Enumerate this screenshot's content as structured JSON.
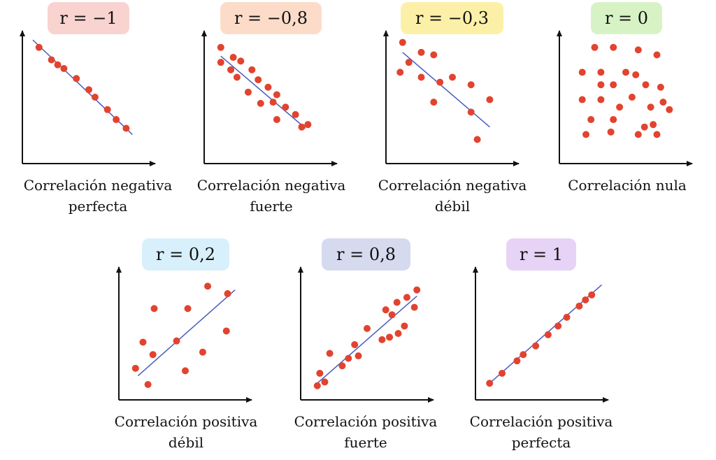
{
  "colors": {
    "point": "#e2432f",
    "trend": "#4a5bbf",
    "axis": "#111111"
  },
  "chart_data": [
    {
      "type": "scatter",
      "label_r": "r = −1",
      "caption_line1": "Correlación negativa",
      "caption_line2": "perfecta",
      "badge_color": "#f8d3d0",
      "x": [
        1.0,
        2.0,
        2.5,
        3.0,
        4.0,
        5.0,
        5.5,
        6.5,
        7.2,
        8.0
      ],
      "y": [
        9.0,
        8.0,
        7.6,
        7.3,
        6.5,
        5.6,
        5.0,
        4.0,
        3.2,
        2.5
      ],
      "trend": [
        [
          0.5,
          9.6
        ],
        [
          8.5,
          2.0
        ]
      ]
    },
    {
      "type": "scatter",
      "label_r": "r = −0,8",
      "caption_line1": "Correlación negativa",
      "caption_line2": "fuerte",
      "badge_color": "#fcdcc9",
      "x": [
        1.0,
        2.0,
        2.6,
        3.5,
        1.0,
        1.8,
        2.3,
        4.0,
        4.8,
        3.2,
        5.5,
        4.2,
        5.2,
        6.2,
        7.0,
        5.5,
        7.5,
        8.0
      ],
      "y": [
        9.0,
        8.2,
        7.9,
        7.2,
        7.8,
        7.2,
        6.6,
        6.4,
        5.8,
        5.4,
        5.2,
        4.5,
        4.6,
        4.2,
        3.6,
        3.2,
        2.6,
        2.8
      ],
      "trend": [
        [
          1.0,
          8.3
        ],
        [
          7.8,
          2.5
        ]
      ]
    },
    {
      "type": "scatter",
      "label_r": "r = −0,3",
      "caption_line1": "Correlación negativa",
      "caption_line2": "débil",
      "badge_color": "#fcf0a8",
      "x": [
        1.0,
        2.5,
        3.5,
        1.5,
        2.5,
        0.8,
        4.0,
        5.0,
        6.5,
        3.5,
        8.0,
        6.5,
        7.0
      ],
      "y": [
        9.4,
        8.6,
        8.4,
        7.8,
        6.6,
        7.0,
        6.2,
        6.6,
        6.0,
        4.6,
        4.8,
        3.8,
        1.6
      ],
      "trend": [
        [
          1.0,
          8.6
        ],
        [
          8.0,
          2.6
        ]
      ]
    },
    {
      "type": "scatter",
      "label_r": "r = 0",
      "caption_line1": "Correlación nula",
      "caption_line2": "",
      "badge_color": "#d7f3c6",
      "x": [
        2.5,
        4.0,
        6.0,
        1.5,
        3.0,
        5.0,
        5.8,
        7.5,
        3.0,
        4.0,
        6.6,
        7.8,
        1.5,
        3.0,
        5.5,
        4.5,
        7.0,
        8.0,
        8.5,
        2.2,
        4.0,
        6.5,
        7.2,
        1.8,
        3.8,
        6.0,
        7.5
      ],
      "y": [
        9.0,
        9.0,
        8.8,
        7.0,
        7.0,
        7.0,
        6.8,
        8.4,
        6.0,
        6.0,
        6.0,
        5.8,
        4.8,
        4.8,
        5.0,
        4.2,
        4.2,
        4.6,
        4.0,
        3.2,
        3.2,
        2.6,
        2.8,
        2.0,
        2.2,
        2.0,
        2.0
      ],
      "trend": null
    },
    {
      "type": "scatter",
      "label_r": "r = 0,2",
      "caption_line1": "Correlación positiva",
      "caption_line2": "débil",
      "badge_color": "#d8f0fb",
      "x": [
        6.8,
        2.5,
        5.2,
        8.4,
        8.3,
        1.6,
        4.3,
        2.4,
        6.4,
        1.0,
        5.0,
        2.0
      ],
      "y": [
        8.8,
        7.0,
        7.0,
        8.2,
        5.2,
        4.3,
        4.4,
        3.3,
        3.5,
        2.2,
        2.0,
        0.9
      ],
      "trend": [
        [
          1.2,
          1.6
        ],
        [
          9.0,
          8.5
        ]
      ]
    },
    {
      "type": "scatter",
      "label_r": "r = 0,8",
      "caption_line1": "Correlación positiva",
      "caption_line2": "fuerte",
      "badge_color": "#d6daef",
      "x": [
        9.0,
        8.2,
        7.4,
        8.8,
        6.5,
        7.0,
        5.0,
        8.0,
        7.5,
        6.8,
        6.2,
        4.0,
        3.5,
        4.3,
        2.0,
        3.0,
        1.2,
        1.6,
        1.0
      ],
      "y": [
        8.5,
        7.9,
        7.5,
        7.1,
        6.9,
        6.5,
        5.4,
        5.6,
        5.0,
        4.7,
        4.5,
        4.1,
        3.0,
        3.2,
        3.4,
        2.4,
        1.8,
        1.1,
        0.8
      ],
      "trend": [
        [
          1.0,
          1.0
        ],
        [
          9.0,
          8.0
        ]
      ]
    },
    {
      "type": "scatter",
      "label_r": "r = 1",
      "caption_line1": "Correlación positiva",
      "caption_line2": "perfecta",
      "badge_color": "#e6d3f6",
      "x": [
        0.8,
        1.8,
        3.0,
        3.5,
        4.5,
        5.5,
        6.3,
        7.0,
        8.0,
        8.5,
        9.0
      ],
      "y": [
        1.0,
        1.8,
        2.8,
        3.3,
        4.0,
        4.9,
        5.6,
        6.3,
        7.2,
        7.7,
        8.1
      ],
      "trend": [
        [
          0.8,
          1.0
        ],
        [
          9.8,
          8.9
        ]
      ]
    }
  ]
}
